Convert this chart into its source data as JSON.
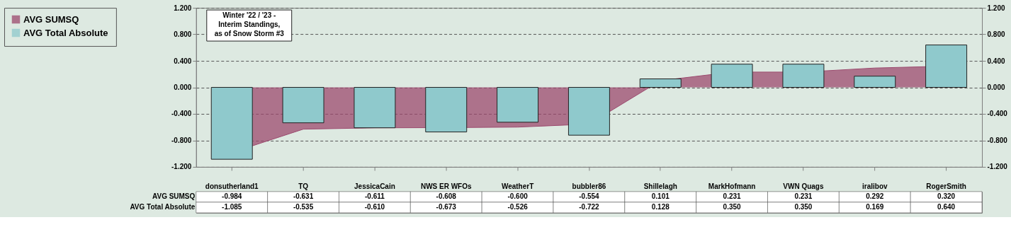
{
  "chart_data": {
    "type": "bar",
    "title": "Winter '22 / '23 - Interim Standings, as of Snow Storm #3",
    "categories": [
      "donsutherland1",
      "TQ",
      "JessicaCain",
      "NWS ER WFOs",
      "WeatherT",
      "bubbler86",
      "Shillelagh",
      "MarkHofmann",
      "VWN Quags",
      "iralibov",
      "RogerSmith"
    ],
    "series": [
      {
        "name": "AVG SUMSQ",
        "type": "area",
        "color": "#9c4a6e",
        "values": [
          -0.984,
          -0.631,
          -0.611,
          -0.608,
          -0.6,
          -0.554,
          0.101,
          0.231,
          0.231,
          0.292,
          0.32
        ],
        "value_labels": [
          "-0.984",
          "-0.631",
          "-0.611",
          "-0.608",
          "-0.600",
          "-0.554",
          "0.101",
          "0.231",
          "0.231",
          "0.292",
          "0.320"
        ]
      },
      {
        "name": "AVG Total Absolute",
        "color": "#8fc9cc",
        "values": [
          -1.085,
          -0.535,
          -0.61,
          -0.673,
          -0.526,
          -0.722,
          0.128,
          0.35,
          0.35,
          0.169,
          0.64
        ],
        "value_labels": [
          "-1.085",
          "-0.535",
          "-0.610",
          "-0.673",
          "-0.526",
          "-0.722",
          "0.128",
          "0.350",
          "0.350",
          "0.169",
          "0.640"
        ]
      }
    ],
    "ylim": [
      -1.2,
      1.2
    ],
    "yticks": [
      {
        "value": -1.2,
        "label": "-1.200"
      },
      {
        "value": -0.8,
        "label": "-0.800"
      },
      {
        "value": -0.4,
        "label": "-0.400"
      },
      {
        "value": 0,
        "label": "0.000"
      },
      {
        "value": 0.4,
        "label": "0.400"
      },
      {
        "value": 0.8,
        "label": "0.800"
      },
      {
        "value": 1.2,
        "label": "1.200"
      }
    ],
    "y2lim": [
      -1.2,
      1.2
    ],
    "y2ticks": [
      {
        "value": -1.2,
        "label": "-1.200"
      },
      {
        "value": -0.8,
        "label": "-0.800"
      },
      {
        "value": -0.4,
        "label": "-0.400"
      },
      {
        "value": 0,
        "label": "0.000"
      },
      {
        "value": 0.4,
        "label": "0.400"
      },
      {
        "value": 0.8,
        "label": "0.800"
      },
      {
        "value": 1.2,
        "label": "1.200"
      }
    ],
    "grid": "y",
    "legend": "left"
  }
}
